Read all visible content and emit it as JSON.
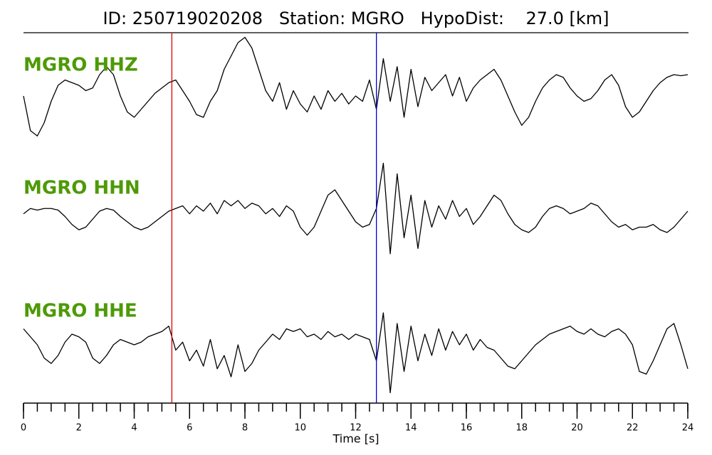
{
  "chart_data": {
    "type": "line",
    "title": "ID: 250719020208   Station: MGRO   HypoDist:    27.0 [km]",
    "xlabel": "Time [s]",
    "xlim": [
      0,
      24
    ],
    "xticks": [
      0,
      2,
      4,
      6,
      8,
      10,
      12,
      14,
      16,
      18,
      20,
      22,
      24
    ],
    "xminorticks": [
      0,
      0.5,
      1,
      1.5,
      2,
      2.5,
      3,
      3.5,
      4,
      4.5,
      5,
      5.5,
      6,
      6.5,
      7,
      7.5,
      8,
      8.5,
      9,
      9.5,
      10,
      10.5,
      11,
      11.5,
      12,
      12.5,
      13,
      13.5,
      14,
      14.5,
      15,
      15.5,
      16,
      16.5,
      17,
      17.5,
      18,
      18.5,
      19,
      19.5,
      20,
      20.5,
      21,
      21.5,
      22,
      22.5,
      23,
      23.5,
      24
    ],
    "ylim": [
      -1,
      1
    ],
    "label_color": "#4e9a06",
    "picks": [
      {
        "x": 5.36,
        "color": "#e00000"
      },
      {
        "x": 12.75,
        "color": "#0000cc"
      }
    ],
    "x": [
      0,
      0.25,
      0.5,
      0.75,
      1,
      1.25,
      1.5,
      1.75,
      2,
      2.25,
      2.5,
      2.75,
      3,
      3.25,
      3.5,
      3.75,
      4,
      4.25,
      4.5,
      4.75,
      5,
      5.25,
      5.5,
      5.75,
      6,
      6.25,
      6.5,
      6.75,
      7,
      7.25,
      7.5,
      7.75,
      8,
      8.25,
      8.5,
      8.75,
      9,
      9.25,
      9.5,
      9.75,
      10,
      10.25,
      10.5,
      10.75,
      11,
      11.25,
      11.5,
      11.75,
      12,
      12.25,
      12.5,
      12.75,
      13,
      13.25,
      13.5,
      13.75,
      14,
      14.25,
      14.5,
      14.75,
      15,
      15.25,
      15.5,
      15.75,
      16,
      16.25,
      16.5,
      16.75,
      17,
      17.25,
      17.5,
      17.75,
      18,
      18.25,
      18.5,
      18.75,
      19,
      19.25,
      19.5,
      19.75,
      20,
      20.25,
      20.5,
      20.75,
      21,
      21.25,
      21.5,
      21.75,
      22,
      22.25,
      22.5,
      22.75,
      23,
      23.25,
      23.5,
      23.75,
      24
    ],
    "series": [
      {
        "name": "MGRO HHZ",
        "color": "#000000",
        "values": [
          -0.2,
          -0.85,
          -0.95,
          -0.7,
          -0.3,
          0,
          0.1,
          0.05,
          0,
          -0.1,
          -0.05,
          0.2,
          0.35,
          0.2,
          -0.2,
          -0.5,
          -0.6,
          -0.45,
          -0.3,
          -0.15,
          -0.05,
          0.05,
          0.1,
          -0.1,
          -0.3,
          -0.55,
          -0.6,
          -0.3,
          -0.1,
          0.3,
          0.55,
          0.8,
          0.9,
          0.7,
          0.3,
          -0.1,
          -0.3,
          0.05,
          -0.45,
          -0.1,
          -0.35,
          -0.5,
          -0.2,
          -0.45,
          -0.1,
          -0.3,
          -0.15,
          -0.35,
          -0.2,
          -0.3,
          0.1,
          -0.45,
          0.5,
          -0.3,
          0.35,
          -0.6,
          0.3,
          -0.4,
          0.15,
          -0.1,
          0.05,
          0.2,
          -0.2,
          0.15,
          -0.3,
          -0.05,
          0.1,
          0.2,
          0.3,
          0.1,
          -0.2,
          -0.5,
          -0.75,
          -0.6,
          -0.3,
          -0.05,
          0.1,
          0.2,
          0.15,
          -0.05,
          -0.2,
          -0.3,
          -0.25,
          -0.1,
          0.1,
          0.2,
          0,
          -0.4,
          -0.6,
          -0.5,
          -0.3,
          -0.1,
          0.05,
          0.15,
          0.2,
          0.18,
          0.2
        ]
      },
      {
        "name": "MGRO HHN",
        "color": "#000000",
        "values": [
          -0.05,
          0.05,
          0.02,
          0.05,
          0.05,
          0.02,
          -0.1,
          -0.25,
          -0.35,
          -0.3,
          -0.15,
          0,
          0.05,
          0.02,
          -0.1,
          -0.2,
          -0.3,
          -0.35,
          -0.3,
          -0.2,
          -0.1,
          0,
          0.05,
          0.1,
          -0.05,
          0.1,
          0,
          0.15,
          -0.05,
          0.2,
          0.1,
          0.2,
          0.05,
          0.15,
          0.1,
          -0.05,
          0.05,
          -0.1,
          0.1,
          0,
          -0.3,
          -0.45,
          -0.3,
          0,
          0.3,
          0.4,
          0.2,
          0,
          -0.2,
          -0.3,
          -0.25,
          0.05,
          0.9,
          -0.8,
          0.7,
          -0.5,
          0.3,
          -0.7,
          0.2,
          -0.3,
          0.1,
          -0.15,
          0.2,
          -0.1,
          0.05,
          -0.25,
          -0.1,
          0.1,
          0.3,
          0.2,
          -0.05,
          -0.25,
          -0.35,
          -0.4,
          -0.3,
          -0.1,
          0.05,
          0.1,
          0.05,
          -0.05,
          0,
          0.05,
          0.15,
          0.1,
          -0.05,
          -0.2,
          -0.3,
          -0.25,
          -0.35,
          -0.3,
          -0.3,
          -0.25,
          -0.35,
          -0.4,
          -0.3,
          -0.15,
          0
        ]
      },
      {
        "name": "MGRO HHE",
        "color": "#000000",
        "values": [
          0.3,
          0.15,
          0,
          -0.25,
          -0.35,
          -0.2,
          0.05,
          0.2,
          0.15,
          0.05,
          -0.25,
          -0.35,
          -0.2,
          0,
          0.1,
          0.05,
          0,
          0.05,
          0.15,
          0.2,
          0.25,
          0.35,
          -0.1,
          0.05,
          -0.3,
          -0.1,
          -0.4,
          0.1,
          -0.45,
          -0.2,
          -0.6,
          0,
          -0.5,
          -0.35,
          -0.1,
          0.05,
          0.2,
          0.1,
          0.3,
          0.25,
          0.3,
          0.15,
          0.2,
          0.1,
          0.25,
          0.15,
          0.2,
          0.1,
          0.2,
          0.15,
          0.1,
          -0.3,
          0.6,
          -0.9,
          0.4,
          -0.5,
          0.35,
          -0.3,
          0.2,
          -0.2,
          0.3,
          -0.1,
          0.25,
          0,
          0.2,
          -0.1,
          0.1,
          -0.05,
          -0.1,
          -0.25,
          -0.4,
          -0.45,
          -0.3,
          -0.15,
          0,
          0.1,
          0.2,
          0.25,
          0.3,
          0.35,
          0.25,
          0.2,
          0.3,
          0.2,
          0.15,
          0.25,
          0.3,
          0.2,
          0,
          -0.5,
          -0.55,
          -0.3,
          0,
          0.3,
          0.4,
          0,
          -0.45
        ]
      }
    ]
  }
}
